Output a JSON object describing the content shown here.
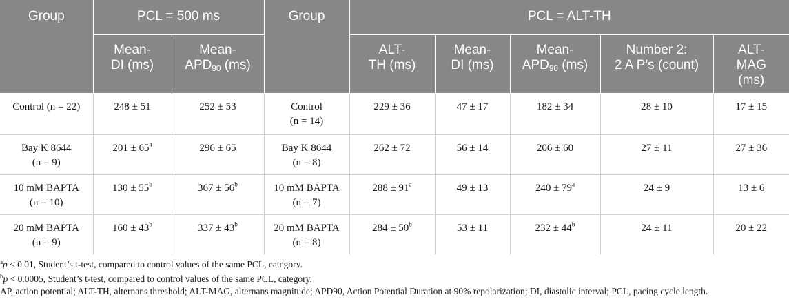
{
  "table": {
    "group_header": "Group",
    "pcl500_header": "PCL = 500 ms",
    "pclalt_header": "PCL = ALT-TH",
    "sub_headers": {
      "mean_di_a": "Mean-",
      "mean_di_b": "DI (ms)",
      "mean_apd_a": "Mean-",
      "mean_apd_b_pre": "APD",
      "mean_apd_b_sub": "90",
      "mean_apd_b_post": " (ms)",
      "alt_th_a": "ALT-",
      "alt_th_b": "TH (ms)",
      "mean_di2_a": "Mean-",
      "mean_di2_b": "DI (ms)",
      "mean_apd2_a": "Mean-",
      "mean_apd2_b_pre": "APD",
      "mean_apd2_b_sub": "90",
      "mean_apd2_b_post": " (ms)",
      "number2_a": "Number 2:",
      "number2_b": "2 A P’s (count)",
      "alt_mag_a": "ALT-",
      "alt_mag_b": "MAG",
      "alt_mag_c": "(ms)"
    },
    "rows": [
      {
        "group1_a": "Control (n = 22)",
        "group1_b": "",
        "di": "248 ± 51",
        "di_sup": "",
        "apd": "252 ± 53",
        "apd_sup": "",
        "group2_a": "Control",
        "group2_b": "(n = 14)",
        "alt_th": "229 ± 36",
        "alt_th_sup": "",
        "di2": "47 ± 17",
        "apd2": "182 ± 34",
        "apd2_sup": "",
        "count": "28 ± 10",
        "alt_mag": "17 ± 15"
      },
      {
        "group1_a": "Bay K 8644",
        "group1_b": "(n = 9)",
        "di": "201 ± 65",
        "di_sup": "a",
        "apd": "296 ± 65",
        "apd_sup": "",
        "group2_a": "Bay K 8644",
        "group2_b": "(n = 8)",
        "alt_th": "262 ± 72",
        "alt_th_sup": "",
        "di2": "56 ± 14",
        "apd2": "206 ± 60",
        "apd2_sup": "",
        "count": "27 ± 11",
        "alt_mag": "27 ± 36"
      },
      {
        "group1_a": "10 mM BAPTA",
        "group1_b": "(n = 10)",
        "di": "130 ± 55",
        "di_sup": "b",
        "apd": "367 ± 56",
        "apd_sup": "b",
        "group2_a": "10 mM BAPTA",
        "group2_b": "(n = 7)",
        "alt_th": "288 ± 91",
        "alt_th_sup": "a",
        "di2": "49 ± 13",
        "apd2": "240 ± 79",
        "apd2_sup": "a",
        "count": "24 ± 9",
        "alt_mag": "13 ± 6"
      },
      {
        "group1_a": "20 mM BAPTA",
        "group1_b": "(n = 9)",
        "di": "160 ± 43",
        "di_sup": "b",
        "apd": "337 ± 43",
        "apd_sup": "b",
        "group2_a": "20 mM BAPTA",
        "group2_b": "(n = 8)",
        "alt_th": "284 ± 50",
        "alt_th_sup": "b",
        "di2": "53 ± 11",
        "apd2": "232 ± 44",
        "apd2_sup": "b",
        "count": "24 ± 11",
        "alt_mag": "20 ± 22"
      }
    ]
  },
  "footnotes": {
    "a_mark": "a",
    "a_p": "p",
    "a_text": " < 0.01, Student’s t-test, compared to control values of the same PCL, category.",
    "b_mark": "b",
    "b_p": "p",
    "b_text": " < 0.0005, Student’s t-test, compared to control values of the same PCL, category.",
    "abbreviations": "AP, action potential; ALT-TH, alternans threshold; ALT-MAG, alternans magnitude; APD90, Action Potential Duration at 90% repolarization; DI, diastolic interval; PCL, pacing cycle length."
  }
}
